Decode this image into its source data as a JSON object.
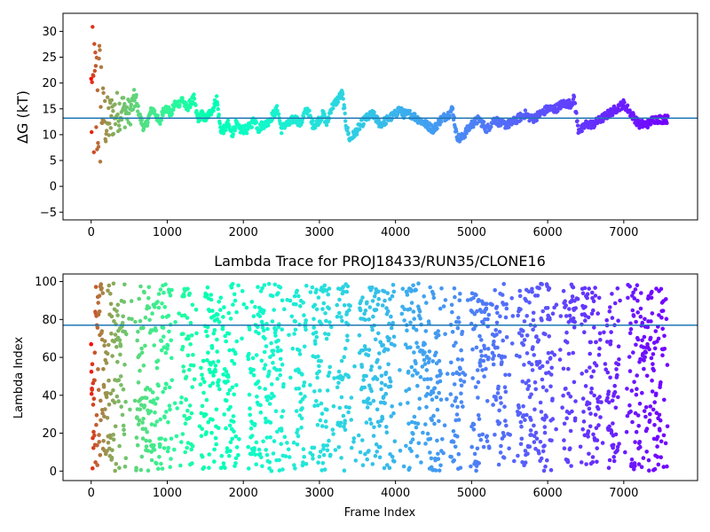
{
  "chart_data": [
    {
      "type": "scatter",
      "title": "",
      "ylabel": "ΔG (kT)",
      "xlabel": "",
      "xlim": [
        -370,
        7970
      ],
      "ylim": [
        -6.5,
        33.5
      ],
      "xticks": [
        "0",
        "1000",
        "2000",
        "3000",
        "4000",
        "5000",
        "6000",
        "7000"
      ],
      "yticks": [
        "−5",
        "0",
        "5",
        "10",
        "15",
        "20",
        "25",
        "30"
      ],
      "hline": 13.2,
      "hline_color": "#1f77b4",
      "colormap": "rainbow",
      "n_frames": 7580,
      "series": [
        {
          "x": [
            0,
            30,
            60,
            90,
            120,
            200,
            300,
            400,
            500,
            580,
            650,
            700,
            800,
            850,
            900,
            950,
            1000,
            1050,
            1100,
            1150,
            1200,
            1250,
            1300,
            1350,
            1400,
            1450,
            1500,
            1550,
            1600,
            1650,
            1700,
            1750,
            1800,
            1850,
            1900,
            1950,
            2000,
            2050,
            2100,
            2150,
            2200,
            2250,
            2300,
            2350,
            2400,
            2450,
            2500,
            2550,
            2600,
            2650,
            2700,
            2750,
            2800,
            2850,
            2900,
            2950,
            3000,
            3050,
            3100,
            3150,
            3200,
            3250,
            3300,
            3350,
            3400,
            3450,
            3500,
            3600,
            3700,
            3800,
            3900,
            4000,
            4050,
            4100,
            4200,
            4300,
            4400,
            4500,
            4600,
            4700,
            4750,
            4800,
            4850,
            4900,
            5000,
            5100,
            5200,
            5300,
            5400,
            5500,
            5600,
            5700,
            5800,
            5900,
            6000,
            6100,
            6200,
            6300,
            6350,
            6400,
            6450,
            6500,
            6600,
            6700,
            6800,
            6900,
            7000,
            7050,
            7100,
            7200,
            7300,
            7400,
            7500,
            7580
          ],
          "y": [
            20,
            14,
            17,
            13,
            16,
            12,
            14,
            15,
            14,
            17,
            13,
            11,
            15,
            14,
            12,
            15,
            15,
            14,
            16,
            16,
            17,
            15,
            16,
            17,
            13,
            14,
            13,
            14,
            15,
            17,
            11,
            11,
            12,
            10,
            12,
            11,
            11,
            11,
            12,
            13,
            11,
            12,
            12,
            13,
            14,
            15,
            11,
            12,
            12,
            13,
            13,
            12,
            14,
            15,
            12,
            12,
            13,
            14,
            12,
            15,
            16,
            17,
            18,
            12,
            9,
            10,
            11,
            13,
            14,
            12,
            13,
            14,
            15,
            14,
            14,
            13,
            12,
            11,
            13,
            14,
            15,
            10,
            9,
            10,
            12,
            13,
            11,
            13,
            12,
            12,
            13,
            14,
            13,
            14,
            15,
            15,
            16,
            16,
            17,
            11,
            11,
            12,
            12,
            13,
            14,
            15,
            16,
            15,
            14,
            12,
            12,
            13,
            13,
            13
          ]
        }
      ]
    },
    {
      "type": "scatter",
      "title": "Lambda Trace for PROJ18433/RUN35/CLONE16",
      "xlabel": "Frame Index",
      "ylabel": "Lambda Index",
      "xlim": [
        -370,
        7970
      ],
      "ylim": [
        -5,
        104
      ],
      "xticks": [
        "0",
        "1000",
        "2000",
        "3000",
        "4000",
        "5000",
        "6000",
        "7000"
      ],
      "yticks": [
        "0",
        "20",
        "40",
        "60",
        "80",
        "100"
      ],
      "hline": 77,
      "hline_color": "#1f77b4",
      "colormap": "rainbow",
      "n_frames": 7580,
      "value_range": [
        0,
        99
      ]
    }
  ]
}
